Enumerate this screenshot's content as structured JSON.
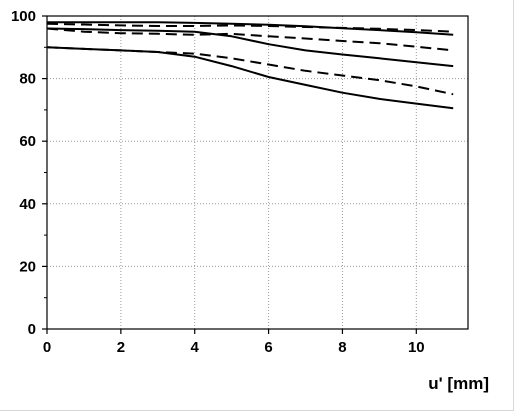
{
  "chart_data": {
    "type": "line",
    "xlabel": "u' [mm]",
    "ylabel": "",
    "xlim": [
      0,
      11.4
    ],
    "ylim": [
      0,
      100
    ],
    "xticks": [
      "0",
      "2",
      "4",
      "6",
      "8",
      "10"
    ],
    "yticks": [
      "0",
      "20",
      "40",
      "60",
      "80",
      "100"
    ],
    "grid": true,
    "legend": "none",
    "series": [
      {
        "style": "solid",
        "x": [
          0,
          1,
          2,
          3,
          4,
          5,
          6,
          7,
          8,
          9,
          10,
          11
        ],
        "y": [
          98,
          98,
          98,
          98,
          97.8,
          97.5,
          97.2,
          96.7,
          96.1,
          95.5,
          94.8,
          94
        ]
      },
      {
        "style": "dashed",
        "x": [
          0,
          1,
          2,
          3,
          4,
          5,
          6,
          7,
          8,
          9,
          10,
          11
        ],
        "y": [
          97.5,
          97.3,
          97,
          96.8,
          96.8,
          97,
          96.8,
          96.5,
          96.2,
          95.9,
          95.5,
          95
        ]
      },
      {
        "style": "solid",
        "x": [
          0,
          1,
          2,
          3,
          4,
          5,
          6,
          7,
          8,
          9,
          10,
          11
        ],
        "y": [
          96,
          95.8,
          95.5,
          95.3,
          95,
          93.5,
          91,
          89,
          87.7,
          86.5,
          85.2,
          84
        ]
      },
      {
        "style": "dashed",
        "x": [
          0,
          1,
          2,
          3,
          4,
          5,
          6,
          7,
          8,
          9,
          10,
          11
        ],
        "y": [
          96,
          95,
          94.5,
          94.3,
          94,
          94.3,
          93.5,
          92.8,
          92,
          91.3,
          90.2,
          89
        ]
      },
      {
        "style": "solid",
        "x": [
          0,
          1,
          2,
          3,
          4,
          5,
          6,
          7,
          8,
          9,
          10,
          11
        ],
        "y": [
          90,
          89.5,
          89,
          88.5,
          87,
          84,
          80.5,
          78,
          75.5,
          73.5,
          72,
          70.5
        ]
      },
      {
        "style": "dashed",
        "x": [
          0,
          1,
          2,
          3,
          4,
          5,
          6,
          7,
          8,
          9,
          10,
          11
        ],
        "y": [
          90,
          89.5,
          89,
          88.5,
          88,
          86.5,
          84.5,
          82.5,
          81,
          79.5,
          77.5,
          75
        ]
      }
    ]
  }
}
